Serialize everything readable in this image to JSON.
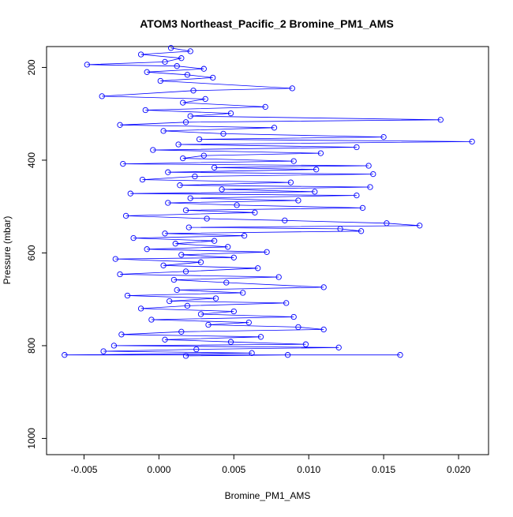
{
  "chart_data": {
    "type": "scatter",
    "title": "ATOM3 Northeast_Pacific_2 Bromine_PM1_AMS",
    "xlabel": "Bromine_PM1_AMS",
    "ylabel": "Pressure (mbar)",
    "xlim": [
      -0.0075,
      0.022
    ],
    "ylim": [
      1035,
      155
    ],
    "y_reversed": true,
    "x_ticks": [
      -0.005,
      0.0,
      0.005,
      0.01,
      0.015,
      0.02
    ],
    "x_tick_labels": [
      "-0.005",
      "0.000",
      "0.005",
      "0.010",
      "0.015",
      "0.020"
    ],
    "y_ticks": [
      200,
      400,
      600,
      800,
      1000
    ],
    "y_tick_labels": [
      "200",
      "400",
      "600",
      "800",
      "1000"
    ],
    "grid": false,
    "legend": "none",
    "series": [
      {
        "color": "#0000ff",
        "marker": "open-circle",
        "connected": true,
        "points": [
          [
            0.0008,
            158
          ],
          [
            0.0021,
            165
          ],
          [
            -0.0012,
            172
          ],
          [
            0.0015,
            180
          ],
          [
            0.0004,
            188
          ],
          [
            -0.0048,
            194
          ],
          [
            0.0012,
            197
          ],
          [
            0.003,
            203
          ],
          [
            -0.0008,
            210
          ],
          [
            0.0019,
            216
          ],
          [
            0.0036,
            222
          ],
          [
            0.0001,
            229
          ],
          [
            0.0089,
            245
          ],
          [
            0.0023,
            250
          ],
          [
            -0.0038,
            262
          ],
          [
            0.0031,
            268
          ],
          [
            0.0016,
            276
          ],
          [
            0.0071,
            285
          ],
          [
            -0.0009,
            292
          ],
          [
            0.0048,
            299
          ],
          [
            0.0021,
            305
          ],
          [
            0.0188,
            313
          ],
          [
            0.0018,
            318
          ],
          [
            -0.0026,
            324
          ],
          [
            0.0077,
            330
          ],
          [
            0.0003,
            337
          ],
          [
            0.0043,
            343
          ],
          [
            0.015,
            350
          ],
          [
            0.0027,
            355
          ],
          [
            0.0209,
            360
          ],
          [
            0.0013,
            366
          ],
          [
            0.0132,
            372
          ],
          [
            -0.0004,
            378
          ],
          [
            0.0108,
            385
          ],
          [
            0.003,
            390
          ],
          [
            0.0016,
            396
          ],
          [
            0.009,
            402
          ],
          [
            -0.0024,
            408
          ],
          [
            0.014,
            412
          ],
          [
            0.0037,
            416
          ],
          [
            0.0105,
            420
          ],
          [
            0.0006,
            426
          ],
          [
            0.0143,
            430
          ],
          [
            0.0024,
            435
          ],
          [
            -0.0011,
            442
          ],
          [
            0.0088,
            448
          ],
          [
            0.0014,
            454
          ],
          [
            0.0141,
            458
          ],
          [
            0.0042,
            463
          ],
          [
            0.0104,
            468
          ],
          [
            -0.0019,
            472
          ],
          [
            0.0132,
            476
          ],
          [
            0.0021,
            482
          ],
          [
            0.0093,
            487
          ],
          [
            0.0006,
            492
          ],
          [
            0.0052,
            497
          ],
          [
            0.0136,
            503
          ],
          [
            0.0018,
            508
          ],
          [
            0.0064,
            513
          ],
          [
            -0.0022,
            520
          ],
          [
            0.0032,
            526
          ],
          [
            0.0084,
            530
          ],
          [
            0.0152,
            536
          ],
          [
            0.0174,
            541
          ],
          [
            0.002,
            545
          ],
          [
            0.0121,
            548
          ],
          [
            0.0135,
            553
          ],
          [
            0.0004,
            558
          ],
          [
            0.0057,
            563
          ],
          [
            -0.0017,
            568
          ],
          [
            0.0037,
            574
          ],
          [
            0.0011,
            580
          ],
          [
            0.0046,
            587
          ],
          [
            -0.0008,
            592
          ],
          [
            0.0072,
            598
          ],
          [
            0.0015,
            604
          ],
          [
            0.005,
            610
          ],
          [
            -0.0029,
            613
          ],
          [
            0.0028,
            620
          ],
          [
            0.0003,
            627
          ],
          [
            0.0066,
            633
          ],
          [
            0.0018,
            640
          ],
          [
            -0.0026,
            646
          ],
          [
            0.008,
            652
          ],
          [
            0.001,
            658
          ],
          [
            0.0045,
            664
          ],
          [
            0.011,
            674
          ],
          [
            0.0012,
            680
          ],
          [
            0.0056,
            686
          ],
          [
            -0.0021,
            692
          ],
          [
            0.0038,
            698
          ],
          [
            0.0007,
            704
          ],
          [
            0.0085,
            708
          ],
          [
            0.0019,
            714
          ],
          [
            -0.0012,
            720
          ],
          [
            0.005,
            726
          ],
          [
            0.0028,
            732
          ],
          [
            0.009,
            738
          ],
          [
            -0.0005,
            744
          ],
          [
            0.006,
            750
          ],
          [
            0.0033,
            755
          ],
          [
            0.0093,
            760
          ],
          [
            0.011,
            765
          ],
          [
            0.0015,
            770
          ],
          [
            -0.0025,
            776
          ],
          [
            0.0068,
            781
          ],
          [
            0.0004,
            787
          ],
          [
            0.0048,
            792
          ],
          [
            0.0098,
            797
          ],
          [
            -0.003,
            800
          ],
          [
            0.012,
            804
          ],
          [
            0.0025,
            808
          ],
          [
            -0.0037,
            812
          ],
          [
            0.0062,
            816
          ],
          [
            -0.0063,
            820
          ],
          [
            0.0161,
            820
          ],
          [
            0.0086,
            820
          ],
          [
            0.0018,
            822
          ]
        ]
      }
    ]
  }
}
